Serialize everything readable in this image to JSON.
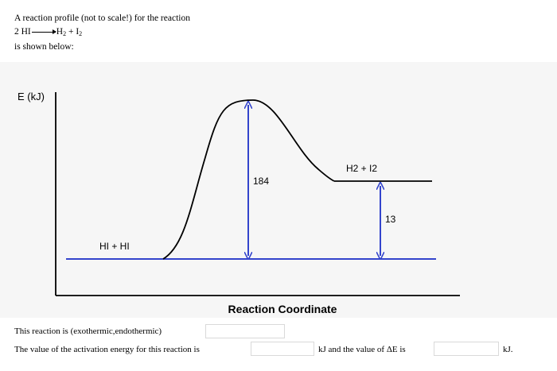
{
  "intro": {
    "line1": "A reaction profile (not to scale!) for the reaction",
    "equation": {
      "coef": "2 HI",
      "p1": "H",
      "p1_sub": "2",
      "plus": "+",
      "p2": "I",
      "p2_sub": "2"
    },
    "line3": "is shown below:"
  },
  "diagram": {
    "y_axis_label": "E (kJ)",
    "x_axis_label": "Reaction Coordinate",
    "reactants_label": "HI + HI",
    "products_label": "H2 + I2",
    "activation_energy_label": "184",
    "delta_e_label": "13",
    "level_color": "#3344cc",
    "arrow_color": "#3344cc",
    "curve_color": "#000000"
  },
  "questions": {
    "q1_text": "This reaction is (exothermic,endothermic)",
    "q2_text": "The value of the activation energy for this reaction is",
    "q2_mid": "kJ and the value of ΔE is",
    "q2_end": "kJ."
  }
}
